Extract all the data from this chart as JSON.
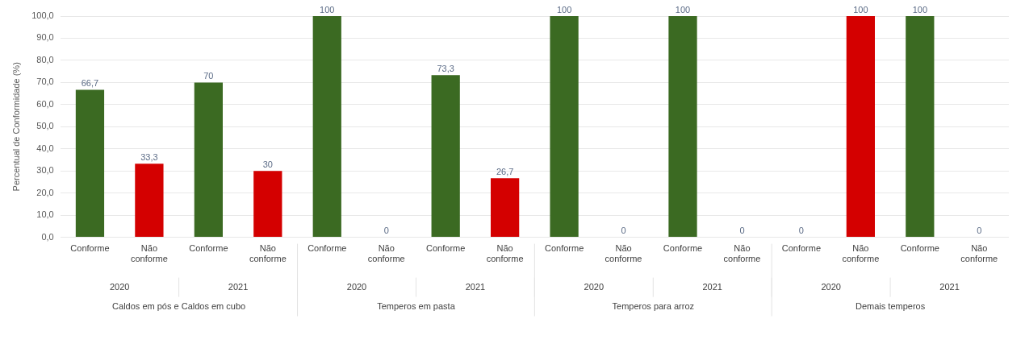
{
  "chart_data": {
    "type": "bar",
    "ylabel": "Percentual de Conformidade (%)",
    "categories": [
      "Conforme",
      "Não conforme",
      "Conforme",
      "Não conforme",
      "Conforme",
      "Não conforme",
      "Conforme",
      "Não conforme",
      "Conforme",
      "Não conforme",
      "Conforme",
      "Não conforme",
      "Conforme",
      "Não conforme",
      "Conforme",
      "Não conforme"
    ],
    "values": [
      66.7,
      33.3,
      70,
      30,
      100,
      0,
      73.3,
      26.7,
      100,
      0,
      100,
      0,
      0,
      100,
      100,
      0
    ],
    "value_labels": [
      "66,7",
      "33,3",
      "70",
      "30",
      "100",
      "0",
      "73,3",
      "26,7",
      "100",
      "0",
      "100",
      "0",
      "0",
      "100",
      "100",
      "0"
    ],
    "colors": [
      "#3b6a22",
      "#d40000",
      "#3b6a22",
      "#d40000",
      "#3b6a22",
      "#d40000",
      "#3b6a22",
      "#d40000",
      "#3b6a22",
      "#d40000",
      "#3b6a22",
      "#d40000",
      "#3b6a22",
      "#d40000",
      "#3b6a22",
      "#d40000"
    ],
    "ylim": [
      0,
      100
    ],
    "yticks": [
      {
        "value": 0,
        "label": "0,0"
      },
      {
        "value": 10,
        "label": "10,0"
      },
      {
        "value": 20,
        "label": "20,0"
      },
      {
        "value": 30,
        "label": "30,0"
      },
      {
        "value": 40,
        "label": "40,0"
      },
      {
        "value": 50,
        "label": "50,0"
      },
      {
        "value": 60,
        "label": "60,0"
      },
      {
        "value": 70,
        "label": "70,0"
      },
      {
        "value": 80,
        "label": "80,0"
      },
      {
        "value": 90,
        "label": "90,0"
      },
      {
        "value": 100,
        "label": "100,0"
      }
    ],
    "grid": "y",
    "annotations": [
      "2020",
      "2021",
      "2020",
      "2021",
      "2020",
      "2021",
      "2020",
      "2021",
      "Caldos em pós e Caldos em cubo",
      "Temperos em pasta",
      "Temperos para arroz",
      "Demais temperos"
    ]
  }
}
